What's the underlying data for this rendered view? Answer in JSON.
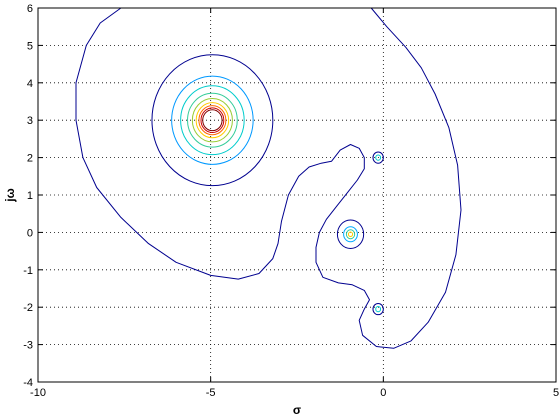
{
  "chart_data": {
    "type": "contour",
    "xlabel": "σ",
    "ylabel": "jω",
    "xlim": [
      -10,
      5
    ],
    "ylim": [
      -4,
      6
    ],
    "xticks": [
      -10,
      -5,
      0,
      5
    ],
    "yticks": [
      -4,
      -3,
      -2,
      -1,
      0,
      1,
      2,
      3,
      4,
      5,
      6
    ],
    "xtick_labels": [
      "-10",
      "-5",
      "0",
      "5"
    ],
    "ytick_labels": [
      "-4",
      "-3",
      "-2",
      "-1",
      "0",
      "1",
      "2",
      "3",
      "4",
      "5",
      "6"
    ],
    "grid": "dotted",
    "line_color": "#00008f",
    "series": [
      {
        "color": "#00008f",
        "closed": false,
        "points": [
          [
            -7.6,
            6.0
          ],
          [
            -8.2,
            5.6
          ],
          [
            -8.6,
            5.0
          ],
          [
            -8.9,
            4.0
          ],
          [
            -8.9,
            3.0
          ],
          [
            -8.7,
            2.0
          ],
          [
            -8.3,
            1.2
          ],
          [
            -7.6,
            0.4
          ],
          [
            -6.8,
            -0.3
          ],
          [
            -6.0,
            -0.8
          ],
          [
            -5.0,
            -1.15
          ],
          [
            -4.2,
            -1.25
          ],
          [
            -3.6,
            -1.1
          ],
          [
            -3.2,
            -0.7
          ],
          [
            -3.05,
            -0.3
          ],
          [
            -2.95,
            0.3
          ],
          [
            -2.75,
            1.0
          ],
          [
            -2.45,
            1.5
          ],
          [
            -2.15,
            1.75
          ],
          [
            -1.8,
            1.85
          ],
          [
            -1.5,
            1.9
          ],
          [
            -1.25,
            2.2
          ],
          [
            -0.95,
            2.35
          ],
          [
            -0.7,
            2.25
          ],
          [
            -0.55,
            2.0
          ],
          [
            -0.55,
            1.7
          ],
          [
            -0.75,
            1.4
          ],
          [
            -1.05,
            1.05
          ],
          [
            -1.35,
            0.7
          ],
          [
            -1.65,
            0.35
          ],
          [
            -1.85,
            0.0
          ],
          [
            -1.95,
            -0.4
          ],
          [
            -1.95,
            -0.8
          ],
          [
            -1.75,
            -1.2
          ],
          [
            -1.3,
            -1.35
          ],
          [
            -0.9,
            -1.4
          ],
          [
            -0.55,
            -1.55
          ],
          [
            -0.4,
            -1.8
          ],
          [
            -0.55,
            -2.05
          ],
          [
            -0.7,
            -2.35
          ],
          [
            -0.6,
            -2.75
          ],
          [
            -0.2,
            -3.05
          ],
          [
            0.3,
            -3.1
          ],
          [
            0.8,
            -2.9
          ],
          [
            1.3,
            -2.4
          ],
          [
            1.8,
            -1.6
          ],
          [
            2.1,
            -0.6
          ],
          [
            2.25,
            0.6
          ],
          [
            2.15,
            1.8
          ],
          [
            1.9,
            2.8
          ],
          [
            1.5,
            3.7
          ],
          [
            1.1,
            4.4
          ],
          [
            0.65,
            4.95
          ],
          [
            0.1,
            5.5
          ],
          [
            -0.35,
            6.0
          ]
        ]
      },
      {
        "color": "#00008f",
        "closed": true,
        "circle": [
          -4.95,
          3.0,
          1.75
        ]
      },
      {
        "color": "#0099ff",
        "closed": true,
        "circle": [
          -4.95,
          3.0,
          1.18
        ]
      },
      {
        "color": "#00cccc",
        "closed": true,
        "circle": [
          -4.95,
          3.0,
          0.92
        ]
      },
      {
        "color": "#33cc99",
        "closed": true,
        "circle": [
          -4.95,
          3.0,
          0.72
        ]
      },
      {
        "color": "#99cc33",
        "closed": true,
        "circle": [
          -4.95,
          3.0,
          0.58
        ]
      },
      {
        "color": "#ffcc00",
        "closed": true,
        "circle": [
          -4.95,
          3.0,
          0.47
        ]
      },
      {
        "color": "#ff6600",
        "closed": true,
        "circle": [
          -4.95,
          3.0,
          0.39
        ]
      },
      {
        "color": "#cc0000",
        "closed": true,
        "circle": [
          -4.95,
          3.0,
          0.33
        ]
      },
      {
        "color": "#800000",
        "closed": true,
        "circle": [
          -4.95,
          3.0,
          0.28
        ]
      },
      {
        "color": "#00008f",
        "closed": true,
        "circle": [
          -0.95,
          -0.05,
          0.38
        ]
      },
      {
        "color": "#00aaff",
        "closed": true,
        "circle": [
          -0.95,
          -0.05,
          0.2
        ]
      },
      {
        "color": "#33cc99",
        "closed": true,
        "circle": [
          -0.95,
          -0.05,
          0.12
        ]
      },
      {
        "color": "#ffcc00",
        "closed": true,
        "circle": [
          -0.95,
          -0.05,
          0.06
        ]
      },
      {
        "color": "#00008f",
        "closed": true,
        "circle": [
          -0.15,
          2.0,
          0.15
        ]
      },
      {
        "color": "#00cccc",
        "closed": true,
        "circle": [
          -0.15,
          2.0,
          0.07
        ]
      },
      {
        "color": "#00008f",
        "closed": true,
        "circle": [
          -0.15,
          -2.05,
          0.15
        ]
      },
      {
        "color": "#00cccc",
        "closed": true,
        "circle": [
          -0.15,
          -2.05,
          0.07
        ]
      }
    ]
  }
}
